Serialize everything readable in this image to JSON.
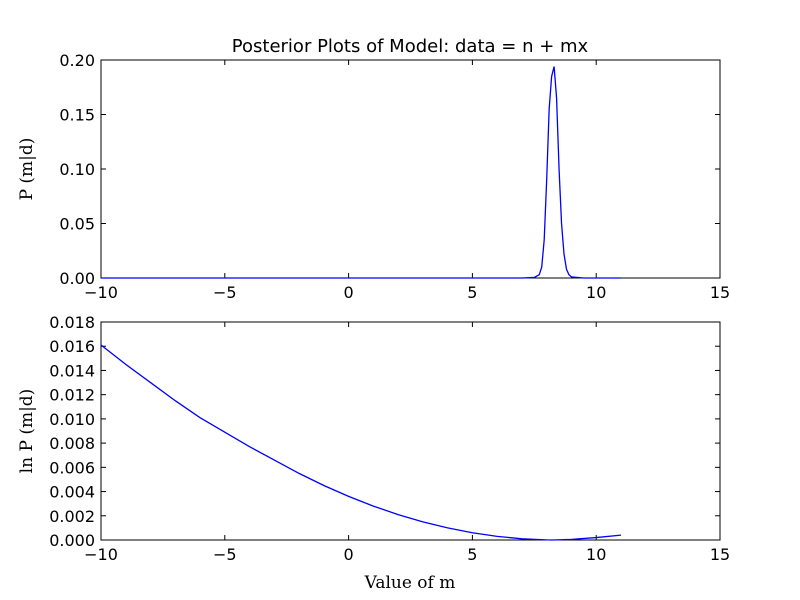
{
  "chart_data": [
    {
      "type": "line",
      "title": "Posterior Plots of Model: data = n + mx",
      "xlabel": "",
      "ylabel": "P (m|d)",
      "xlim": [
        -10,
        15
      ],
      "ylim": [
        0,
        0.2
      ],
      "x_ticks": [
        "−10",
        "−5",
        "0",
        "5",
        "10",
        "15"
      ],
      "y_ticks": [
        "0.00",
        "0.05",
        "0.10",
        "0.15",
        "0.20"
      ],
      "grid": false,
      "color": "#0000ff",
      "series": [
        {
          "x": [
            -10,
            -5,
            0,
            5,
            7.0,
            7.5,
            7.7,
            7.8,
            7.9,
            8.0,
            8.1,
            8.2,
            8.3,
            8.4,
            8.5,
            8.6,
            8.7,
            8.8,
            8.9,
            9.0,
            9.5,
            11.0
          ],
          "y": [
            0,
            0,
            0,
            0,
            0.0,
            0.0005,
            0.003,
            0.01,
            0.035,
            0.09,
            0.155,
            0.185,
            0.194,
            0.165,
            0.1,
            0.05,
            0.022,
            0.008,
            0.003,
            0.001,
            0.0,
            0.0
          ]
        }
      ]
    },
    {
      "type": "line",
      "title": "",
      "xlabel": "Value of m",
      "ylabel": "ln P (m|d)",
      "xlim": [
        -10,
        15
      ],
      "ylim": [
        0,
        0.018
      ],
      "x_ticks": [
        "−10",
        "−5",
        "0",
        "5",
        "10",
        "15"
      ],
      "y_ticks": [
        "0.000",
        "0.002",
        "0.004",
        "0.006",
        "0.008",
        "0.010",
        "0.012",
        "0.014",
        "0.016",
        "0.018"
      ],
      "grid": false,
      "color": "#0000ff",
      "series": [
        {
          "x": [
            -10,
            -9,
            -8,
            -7,
            -6,
            -5,
            -4,
            -3,
            -2,
            -1,
            0,
            1,
            2,
            3,
            4,
            5,
            6,
            7,
            8,
            8.25,
            9,
            10,
            11
          ],
          "y": [
            0.0161,
            0.0145,
            0.013,
            0.0115,
            0.0101,
            0.0089,
            0.0077,
            0.0066,
            0.0055,
            0.0045,
            0.0036,
            0.0028,
            0.0021,
            0.0015,
            0.001,
            0.0006,
            0.0003,
            0.0001,
            1e-05,
            0.0,
            5e-05,
            0.0002,
            0.0004
          ]
        }
      ]
    }
  ]
}
